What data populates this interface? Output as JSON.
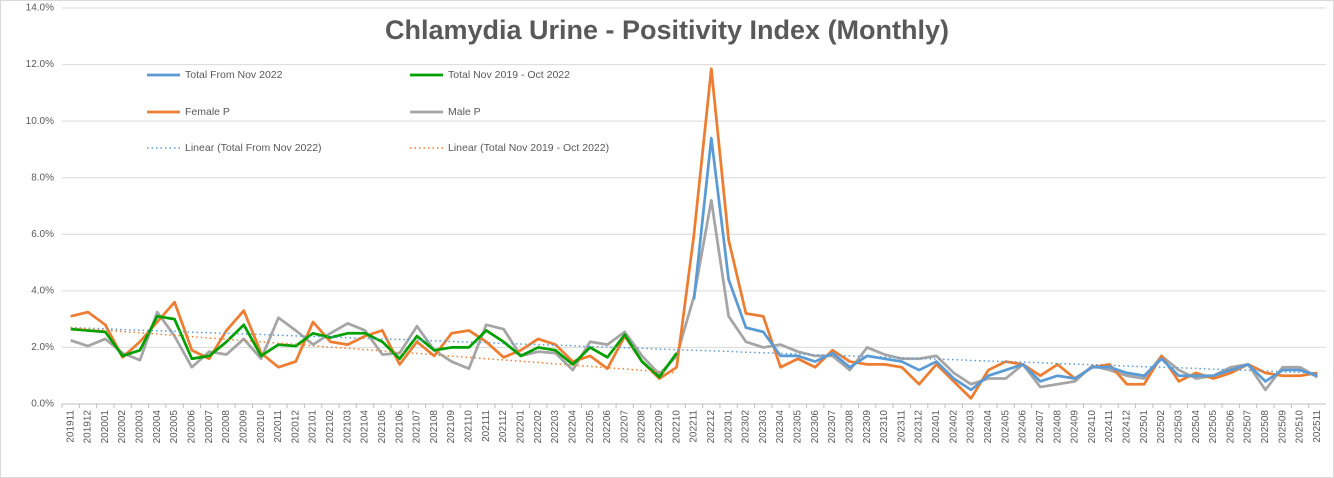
{
  "chart_data": {
    "type": "line",
    "title": "Chlamydia Urine - Positivity Index (Monthly)",
    "categories": [
      "201911",
      "201912",
      "202001",
      "202002",
      "202003",
      "202004",
      "202005",
      "202006",
      "202007",
      "202008",
      "202009",
      "202010",
      "202011",
      "202012",
      "202101",
      "202102",
      "202103",
      "202104",
      "202105",
      "202106",
      "202107",
      "202108",
      "202109",
      "202110",
      "202111",
      "202112",
      "202201",
      "202202",
      "202203",
      "202204",
      "202205",
      "202206",
      "202207",
      "202208",
      "202209",
      "202210",
      "202211",
      "202212",
      "202301",
      "202302",
      "202303",
      "202304",
      "202305",
      "202306",
      "202307",
      "202308",
      "202309",
      "202310",
      "202311",
      "202312",
      "202401",
      "202402",
      "202403",
      "202404",
      "202405",
      "202406",
      "202407",
      "202408",
      "202409",
      "202410",
      "202411",
      "202412",
      "202501",
      "202502",
      "202503",
      "202504",
      "202505",
      "202506",
      "202507",
      "202508",
      "202509",
      "202510",
      "202511"
    ],
    "ylim": [
      0,
      14
    ],
    "yticks": [
      {
        "value": 0,
        "label": "0.0%"
      },
      {
        "value": 2,
        "label": "2.0%"
      },
      {
        "value": 4,
        "label": "4.0%"
      },
      {
        "value": 6,
        "label": "6.0%"
      },
      {
        "value": 8,
        "label": "8.0%"
      },
      {
        "value": 10,
        "label": "10.0%"
      },
      {
        "value": 12,
        "label": "12.0%"
      },
      {
        "value": 14,
        "label": "14.0%"
      }
    ],
    "grid": true,
    "legend": "top-left",
    "series": [
      {
        "name": "Total From Nov 2022",
        "color": "#5b9bd5",
        "style": "solid",
        "values": [
          null,
          null,
          null,
          null,
          null,
          null,
          null,
          null,
          null,
          null,
          null,
          null,
          null,
          null,
          null,
          null,
          null,
          null,
          null,
          null,
          null,
          null,
          null,
          null,
          null,
          null,
          null,
          null,
          null,
          null,
          null,
          null,
          null,
          null,
          null,
          null,
          3.7,
          9.4,
          4.4,
          2.7,
          2.55,
          1.7,
          1.7,
          1.5,
          1.8,
          1.3,
          1.7,
          1.6,
          1.5,
          1.2,
          1.5,
          0.9,
          0.5,
          1.0,
          1.2,
          1.4,
          0.8,
          1.0,
          0.9,
          1.3,
          1.3,
          1.1,
          1.0,
          1.6,
          1.0,
          1.0,
          1.0,
          1.2,
          1.4,
          0.8,
          1.2,
          1.2,
          1.0
        ]
      },
      {
        "name": "Total Nov 2019 - Oct 2022",
        "color": "#00a000",
        "style": "solid",
        "values": [
          2.65,
          2.6,
          2.55,
          1.7,
          1.9,
          3.1,
          3.0,
          1.6,
          1.7,
          2.2,
          2.8,
          1.7,
          2.1,
          2.05,
          2.5,
          2.35,
          2.5,
          2.5,
          2.2,
          1.6,
          2.4,
          1.9,
          2.0,
          2.0,
          2.6,
          2.2,
          1.7,
          2.0,
          1.9,
          1.4,
          2.0,
          1.65,
          2.45,
          1.5,
          0.95,
          1.8,
          null,
          null,
          null,
          null,
          null,
          null,
          null,
          null,
          null,
          null,
          null,
          null,
          null,
          null,
          null,
          null,
          null,
          null,
          null,
          null,
          null,
          null,
          null,
          null,
          null,
          null,
          null,
          null,
          null,
          null,
          null,
          null,
          null,
          null,
          null,
          null,
          null
        ]
      },
      {
        "name": "Female P",
        "color": "#ed7d31",
        "style": "solid",
        "values": [
          3.1,
          3.25,
          2.8,
          1.65,
          2.2,
          2.9,
          3.6,
          1.9,
          1.6,
          2.6,
          3.3,
          1.8,
          1.3,
          1.5,
          2.9,
          2.2,
          2.1,
          2.4,
          2.6,
          1.4,
          2.2,
          1.7,
          2.5,
          2.6,
          2.2,
          1.65,
          1.9,
          2.3,
          2.1,
          1.5,
          1.7,
          1.25,
          2.4,
          1.5,
          0.9,
          1.3,
          6.0,
          11.85,
          5.8,
          3.2,
          3.1,
          1.3,
          1.6,
          1.3,
          1.9,
          1.5,
          1.4,
          1.4,
          1.3,
          0.7,
          1.4,
          0.8,
          0.2,
          1.2,
          1.5,
          1.4,
          1.0,
          1.4,
          0.9,
          1.3,
          1.4,
          0.7,
          0.7,
          1.7,
          0.8,
          1.1,
          0.9,
          1.1,
          1.4,
          1.1,
          1.0,
          1.0,
          1.1
        ]
      },
      {
        "name": "Male P",
        "color": "#a5a5a5",
        "style": "solid",
        "values": [
          2.25,
          2.05,
          2.3,
          1.8,
          1.55,
          3.25,
          2.4,
          1.3,
          1.85,
          1.75,
          2.3,
          1.6,
          3.05,
          2.6,
          2.1,
          2.5,
          2.85,
          2.6,
          1.75,
          1.8,
          2.75,
          1.9,
          1.5,
          1.25,
          2.8,
          2.65,
          1.7,
          1.85,
          1.8,
          1.2,
          2.2,
          2.1,
          2.55,
          1.7,
          1.05,
          1.7,
          3.8,
          7.2,
          3.1,
          2.2,
          2.0,
          2.1,
          1.85,
          1.7,
          1.7,
          1.2,
          2.0,
          1.75,
          1.6,
          1.6,
          1.7,
          1.1,
          0.7,
          0.9,
          0.9,
          1.4,
          0.6,
          0.7,
          0.8,
          1.35,
          1.2,
          1.0,
          0.9,
          1.7,
          1.2,
          0.9,
          1.0,
          1.3,
          1.4,
          0.5,
          1.3,
          1.3,
          0.95
        ]
      },
      {
        "name": "Linear (Total From Nov 2022)",
        "color": "#5b9bd5",
        "style": "dotted",
        "values": [
          2.7,
          2.68,
          2.66,
          2.63,
          2.61,
          2.59,
          2.57,
          2.54,
          2.52,
          2.5,
          2.48,
          2.46,
          2.43,
          2.41,
          2.39,
          2.37,
          2.34,
          2.32,
          2.3,
          2.28,
          2.26,
          2.23,
          2.21,
          2.19,
          2.17,
          2.14,
          2.12,
          2.1,
          2.08,
          2.06,
          2.03,
          2.01,
          1.99,
          1.97,
          1.94,
          1.92,
          1.9,
          1.88,
          1.86,
          1.83,
          1.81,
          1.79,
          1.77,
          1.74,
          1.72,
          1.7,
          1.68,
          1.66,
          1.63,
          1.61,
          1.59,
          1.57,
          1.54,
          1.52,
          1.5,
          1.48,
          1.46,
          1.43,
          1.41,
          1.39,
          1.37,
          1.34,
          1.32,
          1.3,
          1.28,
          1.26,
          1.23,
          1.21,
          1.19,
          1.17,
          1.14,
          1.12,
          1.1
        ]
      },
      {
        "name": "Linear (Total Nov 2019 - Oct 2022)",
        "color": "#ed7d31",
        "style": "dotted",
        "values": [
          2.7,
          2.65,
          2.61,
          2.56,
          2.52,
          2.47,
          2.43,
          2.38,
          2.33,
          2.29,
          2.24,
          2.2,
          2.15,
          2.11,
          2.06,
          2.01,
          1.97,
          1.92,
          1.88,
          1.83,
          1.79,
          1.74,
          1.69,
          1.65,
          1.6,
          1.56,
          1.51,
          1.47,
          1.42,
          1.37,
          1.33,
          1.28,
          1.24,
          1.19,
          1.15,
          1.1,
          null,
          null,
          null,
          null,
          null,
          null,
          null,
          null,
          null,
          null,
          null,
          null,
          null,
          null,
          null,
          null,
          null,
          null,
          null,
          null,
          null,
          null,
          null,
          null,
          null,
          null,
          null,
          null,
          null,
          null,
          null,
          null,
          null,
          null,
          null,
          null,
          null
        ]
      }
    ]
  }
}
